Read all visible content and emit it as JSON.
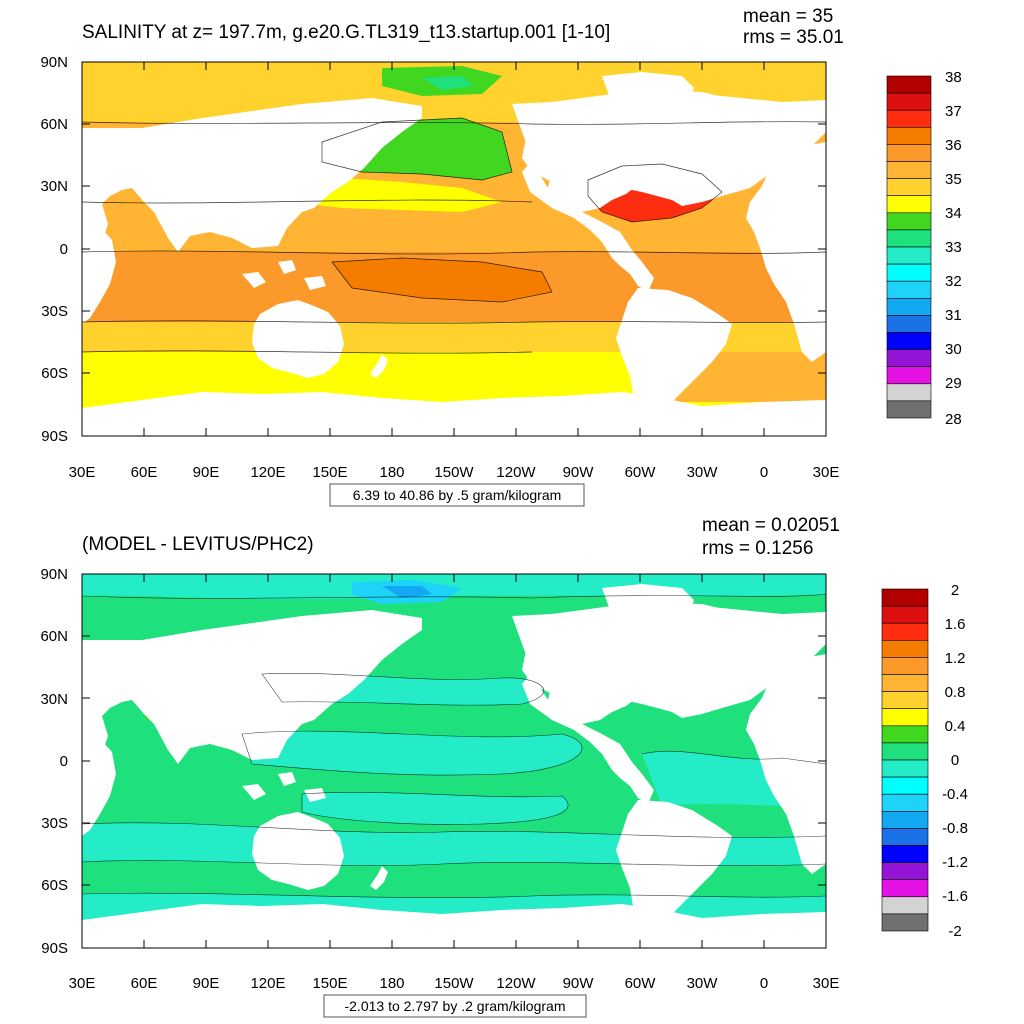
{
  "x_tick_labels": [
    "30E",
    "60E",
    "90E",
    "120E",
    "150E",
    "180",
    "150W",
    "120W",
    "90W",
    "60W",
    "30W",
    "0",
    "30E"
  ],
  "y_tick_labels": [
    "90N",
    "60N",
    "30N",
    "0",
    "30S",
    "60S",
    "90S"
  ],
  "panel_top": {
    "title": "SALINITY at z= 197.7m, g.e20.G.TL319_t13.startup.001 [1-10]",
    "mean_text": "mean = 35",
    "rms_text": "rms = 35.01",
    "range_text": "6.39 to 40.86 by .5 gram/kilogram",
    "legend_labels": [
      "38",
      "37",
      "36",
      "35",
      "34",
      "33",
      "32",
      "31",
      "30",
      "29",
      "28"
    ],
    "legend_colors": [
      "#b20000",
      "#dd1010",
      "#ff2d10",
      "#f47d00",
      "#fb9a2a",
      "#ffb433",
      "#ffd22e",
      "#ffff00",
      "#41d61f",
      "#1ee07c",
      "#23ecc7",
      "#00ffff",
      "#1ed3f8",
      "#12a8f2",
      "#1a72e6",
      "#0000ff",
      "#9414d5",
      "#e512e5",
      "#d3d3d3",
      "#707070"
    ]
  },
  "panel_bottom": {
    "title": "(MODEL - LEVITUS/PHC2)",
    "mean_text": "mean = 0.02051",
    "rms_text": "rms = 0.1256",
    "range_text": "-2.013 to 2.797 by .2 gram/kilogram",
    "legend_labels": [
      "2",
      "1.6",
      "1.2",
      "0.8",
      "0.4",
      "0",
      "-0.4",
      "-0.8",
      "-1.2",
      "-1.6",
      "-2"
    ],
    "legend_colors": [
      "#b20000",
      "#dd1010",
      "#ff2d10",
      "#f47d00",
      "#fb9a2a",
      "#ffb433",
      "#ffd22e",
      "#ffff00",
      "#41d61f",
      "#1ee07c",
      "#23ecc7",
      "#00ffff",
      "#1ed3f8",
      "#12a8f2",
      "#1a72e6",
      "#0000ff",
      "#9414d5",
      "#e512e5",
      "#d3d3d3",
      "#707070"
    ]
  }
}
